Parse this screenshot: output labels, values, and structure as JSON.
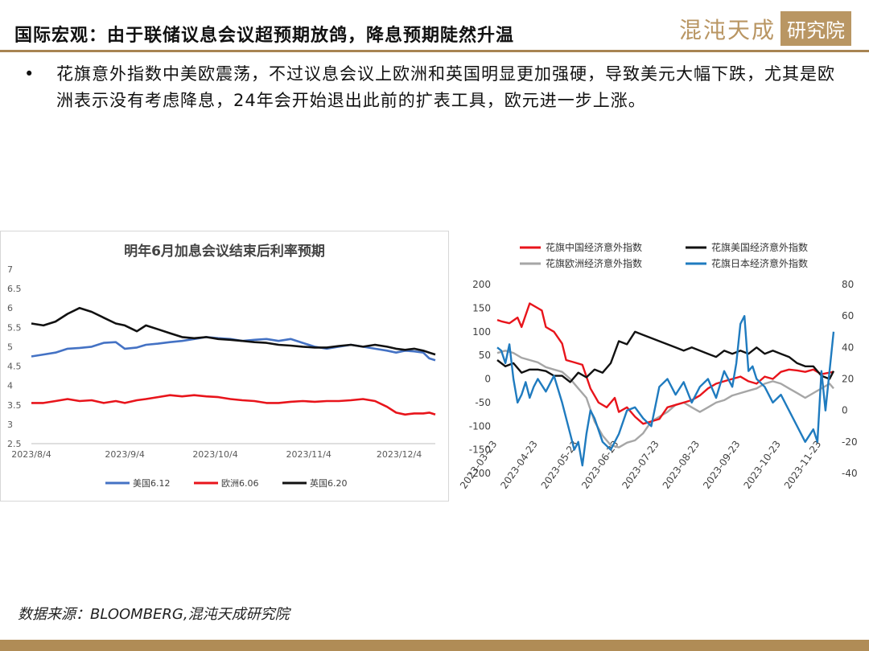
{
  "header": {
    "title": "国际宏观：由于联储议息会议超预期放鸽，降息预期陡然升温",
    "logo_script": "混沌天成",
    "logo_box": "研究院"
  },
  "bullet": {
    "marker": "•",
    "text": "花旗意外指数中美欧震荡，不过议息会议上欧洲和英国明显更加强硬，导致美元大幅下跌，尤其是欧洲表示没有考虑降息，24年会开始退出此前的扩表工具，欧元进一步上涨。"
  },
  "source": "数据来源：BLOOMBERG,混沌天成研究院",
  "colors": {
    "accent": "#a88452",
    "blue": "#4472c4",
    "red": "#e8141b",
    "black": "#111111",
    "gray": "#a6a6a6",
    "lightblue": "#1f7bbf"
  },
  "chart_data": [
    {
      "type": "line",
      "title": "明年6月加息会议结束后利率预期",
      "x_ticks": [
        "2023/8/4",
        "2023/9/4",
        "2023/10/4",
        "2023/11/4",
        "2023/12/4"
      ],
      "x_range": [
        0,
        134
      ],
      "y_ticks": [
        "2.5",
        "3",
        "3.5",
        "4",
        "4.5",
        "5",
        "5.5",
        "6",
        "6.5",
        "7"
      ],
      "ylim": [
        2.5,
        7
      ],
      "legend_position": "bottom",
      "series": [
        {
          "name": "美国6.12",
          "color": "#4472c4",
          "x": [
            0,
            4,
            8,
            12,
            16,
            20,
            24,
            28,
            31,
            35,
            38,
            42,
            46,
            50,
            54,
            58,
            62,
            66,
            70,
            74,
            78,
            82,
            86,
            90,
            94,
            98,
            102,
            106,
            110,
            114,
            118,
            121,
            124,
            127,
            130,
            132,
            134
          ],
          "y": [
            4.75,
            4.8,
            4.85,
            4.95,
            4.97,
            5.0,
            5.1,
            5.12,
            4.95,
            4.98,
            5.05,
            5.08,
            5.12,
            5.15,
            5.2,
            5.25,
            5.22,
            5.2,
            5.15,
            5.18,
            5.2,
            5.15,
            5.2,
            5.1,
            5.0,
            4.95,
            5.0,
            5.05,
            5.0,
            4.95,
            4.9,
            4.85,
            4.9,
            4.88,
            4.85,
            4.7,
            4.65
          ]
        },
        {
          "name": "欧洲6.06",
          "color": "#e8141b",
          "x": [
            0,
            4,
            8,
            12,
            16,
            20,
            24,
            28,
            31,
            35,
            38,
            42,
            46,
            50,
            54,
            58,
            62,
            66,
            70,
            74,
            78,
            82,
            86,
            90,
            94,
            98,
            102,
            106,
            110,
            114,
            118,
            121,
            124,
            127,
            130,
            132,
            134
          ],
          "y": [
            3.55,
            3.55,
            3.6,
            3.65,
            3.6,
            3.62,
            3.55,
            3.6,
            3.55,
            3.62,
            3.65,
            3.7,
            3.75,
            3.72,
            3.75,
            3.72,
            3.7,
            3.65,
            3.62,
            3.6,
            3.55,
            3.55,
            3.58,
            3.6,
            3.58,
            3.6,
            3.6,
            3.62,
            3.65,
            3.6,
            3.45,
            3.3,
            3.25,
            3.28,
            3.28,
            3.3,
            3.25
          ]
        },
        {
          "name": "英国6.20",
          "color": "#111111",
          "x": [
            0,
            4,
            8,
            12,
            16,
            20,
            24,
            28,
            31,
            35,
            38,
            42,
            46,
            50,
            54,
            58,
            62,
            66,
            70,
            74,
            78,
            82,
            86,
            90,
            94,
            98,
            102,
            106,
            110,
            114,
            118,
            121,
            124,
            127,
            130,
            132,
            134
          ],
          "y": [
            5.6,
            5.55,
            5.65,
            5.85,
            6.0,
            5.9,
            5.75,
            5.6,
            5.55,
            5.4,
            5.55,
            5.45,
            5.35,
            5.25,
            5.22,
            5.25,
            5.2,
            5.18,
            5.15,
            5.12,
            5.1,
            5.05,
            5.03,
            5.0,
            4.98,
            4.98,
            5.02,
            5.05,
            5.0,
            5.05,
            5.0,
            4.95,
            4.92,
            4.95,
            4.9,
            4.85,
            4.8
          ]
        }
      ]
    },
    {
      "type": "line",
      "x_ticks": [
        "2023-03-23",
        "2023-04-23",
        "2023-05-23",
        "2023-06-23",
        "2023-07-23",
        "2023-08-23",
        "2023-09-23",
        "2023-10-23",
        "2023-11-23"
      ],
      "y_left_ticks": [
        "-200",
        "-150",
        "-100",
        "-50",
        "0",
        "50",
        "100",
        "150",
        "200"
      ],
      "y_left_lim": [
        -200,
        200
      ],
      "y_right_ticks": [
        "-40",
        "-20",
        "0",
        "20",
        "40",
        "60",
        "80"
      ],
      "y_right_lim": [
        -40,
        80
      ],
      "legend_position": "top",
      "series": [
        {
          "name": "花旗中国经济意外指数",
          "color": "#e8141b",
          "axis": "left",
          "x": [
            0,
            0.1,
            0.3,
            0.5,
            0.6,
            0.8,
            1.0,
            1.1,
            1.2,
            1.4,
            1.6,
            1.7,
            1.9,
            2.1,
            2.3,
            2.5,
            2.7,
            2.9,
            3.0,
            3.2,
            3.4,
            3.6,
            3.8,
            4.0,
            4.2,
            4.4,
            4.6,
            4.8,
            5.0,
            5.2,
            5.4,
            5.6,
            5.8,
            6.0,
            6.2,
            6.4,
            6.6,
            6.8,
            7.0,
            7.2,
            7.4,
            7.6,
            7.8,
            8.0,
            8.3
          ],
          "y": [
            125,
            122,
            118,
            130,
            110,
            160,
            150,
            145,
            110,
            100,
            75,
            40,
            35,
            30,
            -20,
            -50,
            -60,
            -40,
            -70,
            -60,
            -80,
            -95,
            -90,
            -85,
            -60,
            -55,
            -50,
            -45,
            -35,
            -20,
            -10,
            -5,
            0,
            5,
            -5,
            -10,
            5,
            0,
            15,
            20,
            18,
            15,
            20,
            10,
            15
          ]
        },
        {
          "name": "花旗美国经济意外指数",
          "color": "#111111",
          "axis": "right",
          "x": [
            0,
            0.2,
            0.4,
            0.6,
            0.8,
            1.0,
            1.2,
            1.4,
            1.6,
            1.8,
            2.0,
            2.2,
            2.4,
            2.6,
            2.8,
            3.0,
            3.2,
            3.4,
            3.6,
            3.8,
            4.0,
            4.2,
            4.4,
            4.6,
            4.8,
            5.0,
            5.2,
            5.4,
            5.6,
            5.8,
            6.0,
            6.2,
            6.4,
            6.6,
            6.8,
            7.0,
            7.2,
            7.4,
            7.6,
            7.8,
            8.0,
            8.2,
            8.3
          ],
          "y": [
            32,
            28,
            30,
            24,
            26,
            26,
            25,
            22,
            22,
            18,
            24,
            21,
            26,
            24,
            30,
            44,
            42,
            50,
            48,
            46,
            44,
            42,
            40,
            38,
            40,
            38,
            36,
            34,
            38,
            36,
            38,
            36,
            40,
            36,
            38,
            36,
            34,
            30,
            28,
            28,
            22,
            20,
            25
          ]
        },
        {
          "name": "花旗欧洲经济意外指数",
          "color": "#a6a6a6",
          "axis": "left",
          "x": [
            0,
            0.2,
            0.4,
            0.6,
            0.8,
            1.0,
            1.2,
            1.4,
            1.6,
            1.8,
            2.0,
            2.2,
            2.4,
            2.6,
            2.8,
            3.0,
            3.2,
            3.4,
            3.6,
            3.8,
            4.0,
            4.2,
            4.4,
            4.6,
            4.8,
            5.0,
            5.2,
            5.4,
            5.6,
            5.8,
            6.0,
            6.2,
            6.4,
            6.6,
            6.8,
            7.0,
            7.2,
            7.4,
            7.6,
            7.8,
            8.0,
            8.2,
            8.3
          ],
          "y": [
            55,
            60,
            55,
            45,
            40,
            35,
            25,
            20,
            15,
            0,
            -20,
            -40,
            -90,
            -120,
            -140,
            -145,
            -135,
            -130,
            -115,
            -90,
            -80,
            -70,
            -55,
            -50,
            -60,
            -70,
            -60,
            -50,
            -45,
            -35,
            -30,
            -25,
            -20,
            -10,
            -5,
            -10,
            -20,
            -30,
            -40,
            -30,
            -20,
            -10,
            -20
          ]
        },
        {
          "name": "花旗日本经济意外指数",
          "color": "#1f7bbf",
          "axis": "right",
          "x": [
            0,
            0.1,
            0.2,
            0.3,
            0.4,
            0.5,
            0.6,
            0.7,
            0.8,
            0.9,
            1.0,
            1.2,
            1.4,
            1.6,
            1.8,
            1.9,
            2.0,
            2.1,
            2.2,
            2.3,
            2.4,
            2.6,
            2.8,
            3.0,
            3.2,
            3.4,
            3.6,
            3.8,
            4.0,
            4.2,
            4.4,
            4.6,
            4.8,
            5.0,
            5.2,
            5.4,
            5.6,
            5.8,
            5.9,
            6.0,
            6.1,
            6.2,
            6.3,
            6.4,
            6.6,
            6.8,
            7.0,
            7.2,
            7.4,
            7.6,
            7.8,
            7.9,
            8.0,
            8.1,
            8.3
          ],
          "y": [
            40,
            38,
            30,
            42,
            20,
            5,
            10,
            18,
            8,
            15,
            20,
            12,
            22,
            5,
            -15,
            -25,
            -20,
            -35,
            -15,
            0,
            -5,
            -20,
            -25,
            -15,
            0,
            2,
            -5,
            -10,
            15,
            20,
            10,
            18,
            5,
            15,
            20,
            8,
            25,
            15,
            30,
            55,
            60,
            25,
            28,
            20,
            15,
            5,
            10,
            0,
            -10,
            -20,
            -12,
            -20,
            25,
            0,
            50
          ]
        }
      ]
    }
  ]
}
